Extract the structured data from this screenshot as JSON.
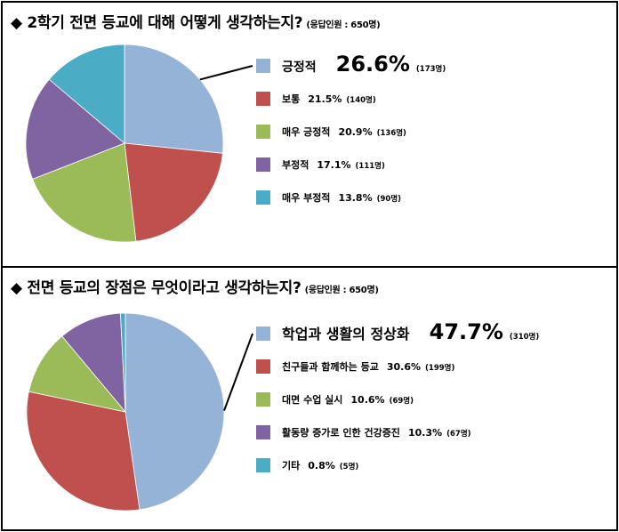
{
  "charts": [
    {
      "question": "◆ 2학기 전면 등교에 대해 어떻게 생각하는지?",
      "note": "(응답인원 : 650명)"
    },
    {
      "question": "◆ 전면 등교의 장점은 무엇이라고 생각하는지?",
      "note": "(응답인원 : 650명)"
    }
  ],
  "chart_data": [
    {
      "type": "pie",
      "title": "◆ 2학기 전면 등교에 대해 어떻게 생각하는지?",
      "subtitle": "(응답인원 : 650명)",
      "slices": [
        {
          "label": "긍정적",
          "pct": 26.6,
          "pct_text": "26.6%",
          "count_text": "(173명)",
          "color": "#95B3D7"
        },
        {
          "label": "보통",
          "pct": 21.5,
          "pct_text": "21.5%",
          "count_text": "(140명)",
          "color": "#C0504D"
        },
        {
          "label": "매우 긍정적",
          "pct": 20.9,
          "pct_text": "20.9%",
          "count_text": "(136명)",
          "color": "#9BBB59"
        },
        {
          "label": "부정적",
          "pct": 17.1,
          "pct_text": "17.1%",
          "count_text": "(111명)",
          "color": "#8064A2"
        },
        {
          "label": "매우 부정적",
          "pct": 13.8,
          "pct_text": "13.8%",
          "count_text": "(90명)",
          "color": "#4BACC6"
        }
      ],
      "legend_position": "right"
    },
    {
      "type": "pie",
      "title": "◆ 전면 등교의 장점은 무엇이라고 생각하는지?",
      "subtitle": "(응답인원 : 650명)",
      "slices": [
        {
          "label": "학업과 생활의 정상화",
          "pct": 47.7,
          "pct_text": "47.7%",
          "count_text": "(310명)",
          "color": "#95B3D7"
        },
        {
          "label": "친구들과 함께하는 등교",
          "pct": 30.6,
          "pct_text": "30.6%",
          "count_text": "(199명)",
          "color": "#C0504D"
        },
        {
          "label": "대면 수업 실시",
          "pct": 10.6,
          "pct_text": "10.6%",
          "count_text": "(69명)",
          "color": "#9BBB59"
        },
        {
          "label": "활동량 증가로 인한 건강증진",
          "pct": 10.3,
          "pct_text": "10.3%",
          "count_text": "(67명)",
          "color": "#8064A2"
        },
        {
          "label": "기타",
          "pct": 0.8,
          "pct_text": "0.8%",
          "count_text": "(5명)",
          "color": "#4BACC6"
        }
      ],
      "legend_position": "right"
    }
  ]
}
